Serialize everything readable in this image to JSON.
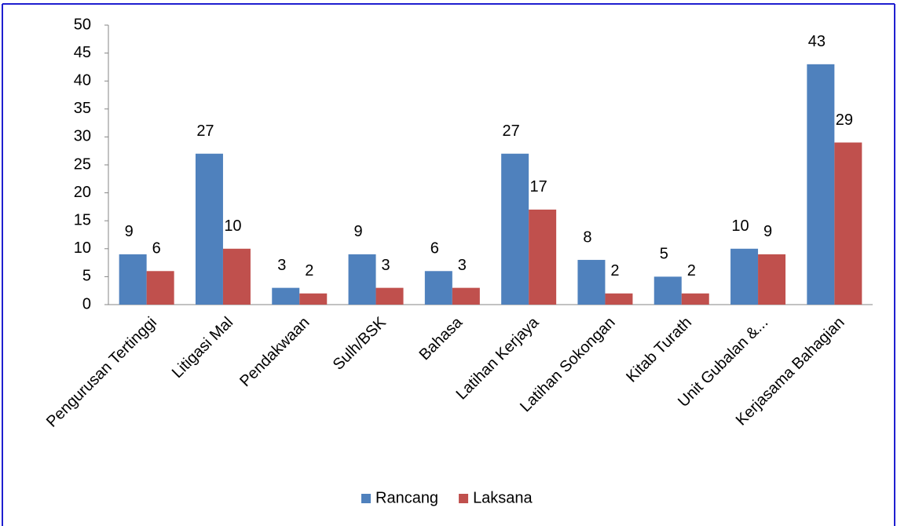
{
  "chart_data": {
    "type": "bar",
    "categories": [
      "Pengurusan Tertinggi",
      "Litigasi Mal",
      "Pendakwaan",
      "Sulh/BSK",
      "Bahasa",
      "Latihan Kerjaya",
      "Latihan Sokongan",
      "Kitab Turath",
      "Unit Gubalan &...",
      "Kerjasama Bahagian"
    ],
    "series": [
      {
        "name": "Rancang",
        "color": "#4f81bd",
        "values": [
          9,
          27,
          3,
          9,
          6,
          27,
          8,
          5,
          10,
          43
        ]
      },
      {
        "name": "Laksana",
        "color": "#c0504d",
        "values": [
          6,
          10,
          2,
          3,
          3,
          17,
          2,
          2,
          9,
          29
        ]
      }
    ],
    "ylim": [
      0,
      50
    ],
    "yticks": [
      0,
      5,
      10,
      15,
      20,
      25,
      30,
      35,
      40,
      45,
      50
    ],
    "grid": false,
    "legend": "bottom"
  }
}
